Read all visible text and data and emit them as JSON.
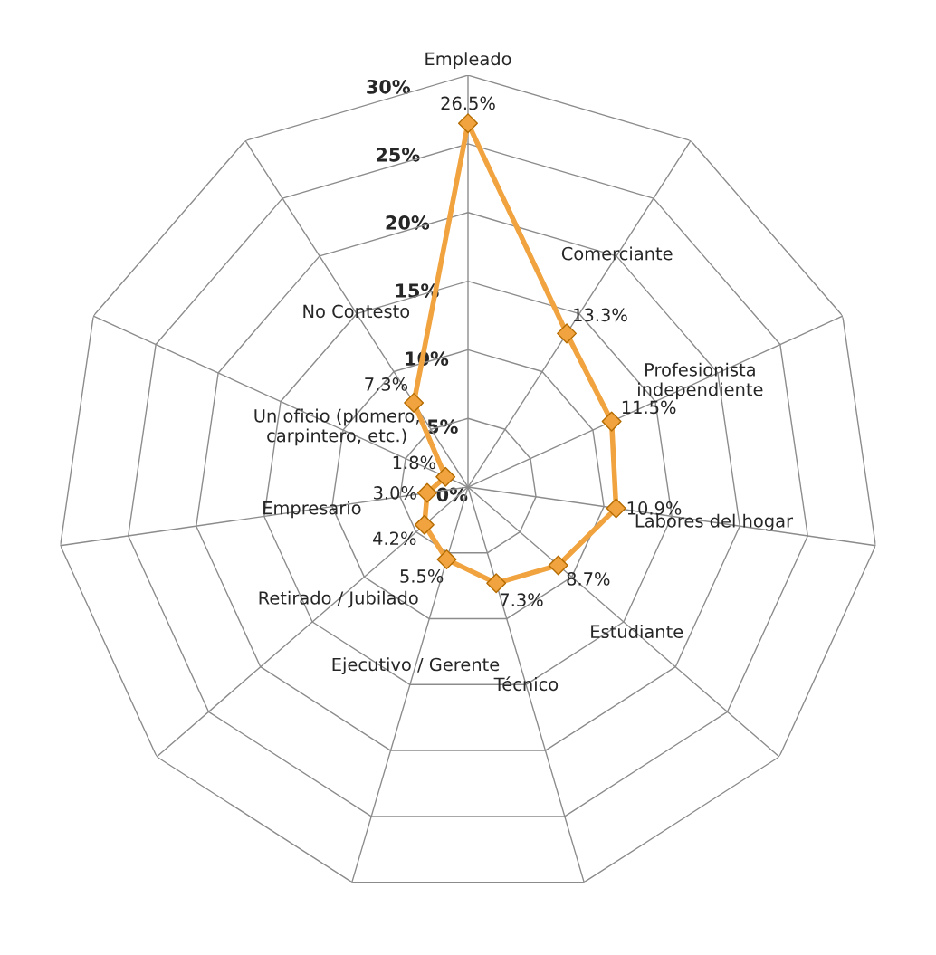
{
  "chart_data": {
    "type": "radar",
    "categories": [
      "Empleado",
      "Comerciante",
      "Profesionista\nindependiente",
      "Labores del hogar",
      "Estudiante",
      "Técnico",
      "Ejecutivo / Gerente",
      "Retirado / Jubilado",
      "Empresario",
      "Un oficio (plomero,\ncarpintero, etc.)",
      "No Contesto"
    ],
    "series": [
      {
        "color": "#f0a33e",
        "values": [
          26.5,
          13.3,
          11.5,
          10.9,
          8.7,
          7.3,
          5.5,
          4.2,
          3.0,
          1.8,
          7.3
        ],
        "value_labels": [
          "26.5%",
          "13.3%",
          "11.5%",
          "10.9%",
          "8.7%",
          "7.3%",
          "5.5%",
          "4.2%",
          "3.0%",
          "1.8%",
          "7.3%"
        ]
      }
    ],
    "ylim": [
      0,
      30
    ],
    "yticks": [
      {
        "value": 0,
        "label": "0%"
      },
      {
        "value": 5,
        "label": "5%"
      },
      {
        "value": 10,
        "label": "10%"
      },
      {
        "value": 15,
        "label": "15%"
      },
      {
        "value": 20,
        "label": "20%"
      },
      {
        "value": 25,
        "label": "25%"
      },
      {
        "value": 30,
        "label": "30%"
      }
    ],
    "grid": true,
    "marker": "diamond",
    "line_style": "solid"
  }
}
